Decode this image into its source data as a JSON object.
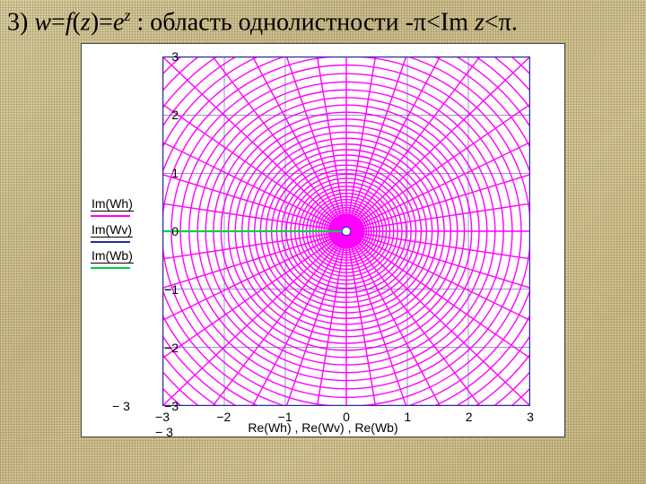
{
  "slide": {
    "title_html": "3) <span class='i'>w</span>=<span class='i'>f</span>(<span class='i'>z</span>)=<span class='i'>e</span><sup><span class='i'>z</span></sup> : область однолистности -π&lt;Im <span class='i'>z</span>&lt;π."
  },
  "chart": {
    "type": "conformal-map-grid",
    "xlim": [
      -3,
      3
    ],
    "ylim": [
      -3,
      3
    ],
    "tick_step": 1,
    "ext_ticks": {
      "x_left": "− 3",
      "y_bottom": "− 3"
    },
    "xlabel": "Re(Wh) , Re(Wv) , Re(Wb)",
    "background_color": "#ffffff",
    "frame_color": "#2a2aa0",
    "grid_color": "#2a2aa0",
    "grid_width": 0.5,
    "series": {
      "rays": {
        "color": "#ff00ff",
        "width": 1.4,
        "count": 40
      },
      "circles": {
        "color": "#ff00ff",
        "width": 1.4,
        "radii_count": 60
      },
      "branch": {
        "color": "#00d040",
        "width": 1.6
      }
    },
    "legend": [
      {
        "label": "Im(Wh)",
        "color": "#ff00ff",
        "style": "solid"
      },
      {
        "label": "Im(Wv)",
        "color": "#2a2aa0",
        "style": "solid"
      },
      {
        "label": "Im(Wb)",
        "color": "#00d040",
        "style": "solid"
      }
    ],
    "center_marker": {
      "fill": "#ffffff",
      "stroke": "#2a2aa0",
      "r": 3
    }
  }
}
